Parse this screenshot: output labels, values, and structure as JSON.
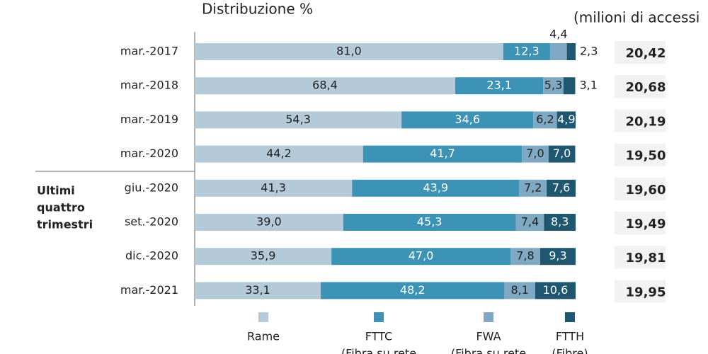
{
  "chart_data": {
    "type": "stacked-bar-horizontal",
    "title": "Distribuzione %",
    "subtitle": "(milioni di accessi",
    "group_label": [
      "Ultimi",
      "quattro",
      "trimestri"
    ],
    "categories": [
      "mar.-2017",
      "mar.-2018",
      "mar.-2019",
      "mar.-2020",
      "giu.-2020",
      "set.-2020",
      "dic.-2020",
      "mar.-2021"
    ],
    "xlim": [
      0,
      100
    ],
    "series": [
      {
        "name": "Rame",
        "color": "#b4cad8",
        "values": [
          81.0,
          68.4,
          54.3,
          44.2,
          41.3,
          39.0,
          35.9,
          33.1
        ],
        "value_labels": [
          "81,0",
          "68,4",
          "54,3",
          "44,2",
          "41,3",
          "39,0",
          "35,9",
          "33,1"
        ]
      },
      {
        "name": "FTTC",
        "note": "(Fibra su rete",
        "color": "#3d93b5",
        "values": [
          12.3,
          23.1,
          34.6,
          41.7,
          43.9,
          45.3,
          47.0,
          48.2
        ],
        "value_labels": [
          "12,3",
          "23,1",
          "34,6",
          "41,7",
          "43,9",
          "45,3",
          "47,0",
          "48,2"
        ]
      },
      {
        "name": "FWA",
        "note": "(Fibra su rete",
        "color": "#7fa9c2",
        "values": [
          4.4,
          5.3,
          6.2,
          7.0,
          7.2,
          7.4,
          7.8,
          8.1
        ],
        "value_labels": [
          "4,4",
          "5,3",
          "6,2",
          "7,0",
          "7,2",
          "7,4",
          "7,8",
          "8,1"
        ]
      },
      {
        "name": "FTTH",
        "note": "(Fibre)",
        "color": "#1f5670",
        "values": [
          2.3,
          3.1,
          4.9,
          7.0,
          7.6,
          8.3,
          9.3,
          10.6
        ],
        "value_labels": [
          "2,3",
          "3,1",
          "4,9",
          "7,0",
          "7,6",
          "8,3",
          "9,3",
          "10,6"
        ]
      }
    ],
    "totals": {
      "values": [
        20.42,
        20.68,
        20.19,
        19.5,
        19.6,
        19.49,
        19.81,
        19.95
      ],
      "value_labels": [
        "20,42",
        "20,68",
        "20,19",
        "19,50",
        "19,60",
        "19,49",
        "19,81",
        "19,95"
      ]
    }
  }
}
